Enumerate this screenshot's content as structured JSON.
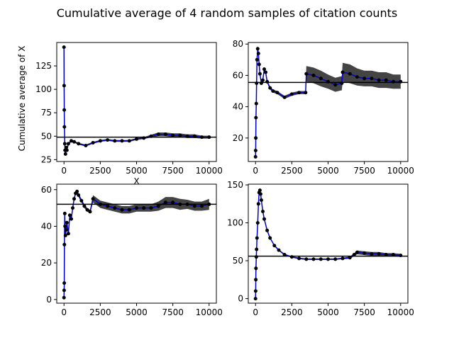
{
  "figure": {
    "title": "Cumulative average of 4 random samples of citation counts"
  },
  "chart_data": [
    {
      "type": "line",
      "panel": "top-left",
      "ylabel": "Cumulative average of X",
      "xlabel": "X",
      "xlim": [
        -500,
        10500
      ],
      "ylim": [
        23,
        150
      ],
      "xticks": [
        0,
        2500,
        5000,
        7500,
        10000
      ],
      "yticks": [
        25,
        50,
        75,
        100,
        125
      ],
      "reference_line": 49,
      "colors": {
        "series": "#0000cc",
        "points": "#000000",
        "band": "#444444",
        "reference": "#000000"
      },
      "series": [
        {
          "x": [
            0,
            10,
            20,
            30,
            50,
            70,
            100,
            150,
            200,
            300,
            500,
            700,
            1000,
            1500,
            2000,
            2500,
            3000,
            3500,
            4000,
            4500,
            5000,
            5500,
            6000,
            6500,
            7000,
            7500,
            8000,
            8500,
            9000,
            9500,
            10000
          ],
          "y": [
            145,
            104,
            78,
            60,
            42,
            35,
            31,
            38,
            35,
            42,
            45,
            44,
            42,
            40,
            43,
            45,
            46,
            45,
            45,
            45,
            47,
            48,
            50,
            52,
            52,
            51,
            51,
            50,
            50,
            49,
            49
          ],
          "spread": [
            0,
            0,
            0,
            0,
            0,
            0,
            0,
            0,
            0,
            1,
            1,
            1,
            1,
            1,
            1,
            1,
            1,
            1,
            1,
            1,
            1,
            1,
            1.5,
            2,
            2,
            2,
            2,
            2,
            2,
            1.5,
            1.5
          ]
        }
      ]
    },
    {
      "type": "line",
      "panel": "top-right",
      "xlim": [
        -500,
        10500
      ],
      "ylim": [
        5,
        81
      ],
      "xticks": [
        0,
        2500,
        5000,
        7500,
        10000
      ],
      "yticks": [
        20,
        40,
        60,
        80
      ],
      "reference_line": 55.5,
      "colors": {
        "series": "#0000cc",
        "points": "#000000",
        "band": "#444444",
        "reference": "#000000"
      },
      "series": [
        {
          "x": [
            0,
            10,
            20,
            30,
            50,
            70,
            100,
            150,
            200,
            250,
            300,
            400,
            500,
            600,
            700,
            800,
            1000,
            1200,
            1500,
            2000,
            2500,
            3000,
            3450,
            3500,
            4000,
            4500,
            5000,
            5500,
            5950,
            6000,
            6500,
            7000,
            7500,
            8000,
            8500,
            9000,
            9500,
            10000
          ],
          "y": [
            8,
            12,
            20,
            33,
            42,
            55,
            70,
            77,
            74,
            67,
            61,
            55,
            57,
            64,
            62,
            56,
            52,
            50,
            49,
            46,
            48,
            49,
            49,
            61,
            60,
            58,
            56,
            54,
            55,
            62,
            61,
            59,
            58,
            58,
            57,
            57,
            56,
            56
          ],
          "spread": [
            0,
            0,
            0,
            0,
            0,
            0,
            0,
            0,
            0,
            1,
            1,
            1,
            1,
            1,
            1,
            1,
            1,
            1,
            1,
            1,
            1,
            1,
            1,
            5,
            5,
            5,
            4.5,
            4.5,
            4.5,
            6,
            6,
            5.5,
            5,
            5,
            5,
            5,
            4.5,
            4.5
          ]
        }
      ]
    },
    {
      "type": "line",
      "panel": "bottom-left",
      "xlim": [
        -500,
        10500
      ],
      "ylim": [
        -2,
        63
      ],
      "xticks": [
        0,
        2500,
        5000,
        7500,
        10000
      ],
      "yticks": [
        0,
        20,
        40,
        60
      ],
      "reference_line": 52,
      "colors": {
        "series": "#0000cc",
        "points": "#000000",
        "band": "#444444",
        "reference": "#000000"
      },
      "series": [
        {
          "x": [
            0,
            10,
            20,
            30,
            50,
            70,
            100,
            150,
            200,
            300,
            400,
            500,
            600,
            700,
            800,
            900,
            1000,
            1200,
            1400,
            1600,
            1800,
            2000,
            2500,
            3000,
            3500,
            4000,
            4500,
            5000,
            5500,
            6000,
            6500,
            7000,
            7500,
            8000,
            8500,
            9000,
            9500,
            10000
          ],
          "y": [
            1,
            5,
            9,
            30,
            47,
            40,
            35,
            38,
            42,
            36,
            46,
            44,
            50,
            55,
            58,
            59,
            57,
            54,
            51,
            49,
            48,
            55,
            52,
            51,
            50,
            49,
            49,
            50,
            50,
            50,
            51,
            53,
            53,
            52,
            52,
            51,
            51,
            52
          ],
          "spread": [
            0,
            0,
            0,
            0,
            0,
            0,
            0,
            0,
            0,
            1,
            1,
            1,
            1,
            1,
            1,
            1,
            1,
            1,
            1,
            1,
            1,
            2,
            2,
            2,
            2,
            2,
            2,
            2,
            2,
            2,
            2.5,
            3,
            3,
            3,
            2.5,
            2.5,
            2.5,
            3
          ]
        }
      ]
    },
    {
      "type": "line",
      "panel": "bottom-right",
      "xlim": [
        -500,
        10500
      ],
      "ylim": [
        -6,
        151
      ],
      "xticks": [
        0,
        2500,
        5000,
        7500,
        10000
      ],
      "yticks": [
        0,
        50,
        100,
        150
      ],
      "reference_line": 56,
      "colors": {
        "series": "#0000cc",
        "points": "#000000",
        "band": "#444444",
        "reference": "#000000"
      },
      "series": [
        {
          "x": [
            0,
            10,
            20,
            30,
            50,
            70,
            100,
            150,
            200,
            250,
            300,
            350,
            400,
            500,
            600,
            800,
            1000,
            1300,
            1600,
            2000,
            2500,
            3000,
            3500,
            4000,
            4500,
            5000,
            5500,
            6000,
            6500,
            6800,
            7000,
            7500,
            8000,
            8500,
            9000,
            9500,
            10000
          ],
          "y": [
            0,
            10,
            25,
            40,
            55,
            65,
            80,
            100,
            125,
            140,
            143,
            138,
            130,
            115,
            105,
            90,
            80,
            70,
            64,
            58,
            55,
            53,
            52,
            52,
            52,
            52,
            52,
            53,
            54,
            58,
            61,
            60,
            59,
            59,
            58,
            58,
            57
          ],
          "spread": [
            0,
            0,
            0,
            0,
            0,
            0,
            0,
            0,
            0,
            1,
            1,
            1,
            1,
            1,
            1,
            1,
            1,
            1,
            1,
            1,
            1,
            1,
            1,
            1,
            1,
            1,
            1,
            1,
            1.5,
            2,
            2.5,
            2.5,
            2.5,
            2.5,
            2,
            2,
            2
          ]
        }
      ]
    }
  ]
}
